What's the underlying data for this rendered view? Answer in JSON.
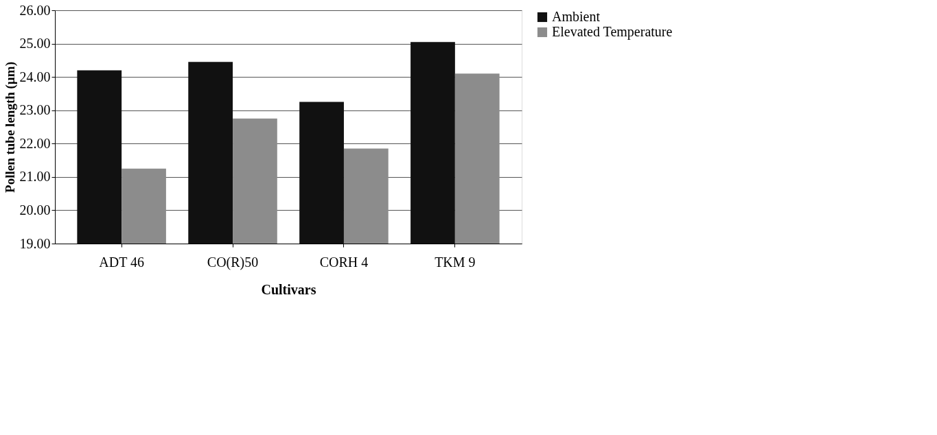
{
  "chart_data": {
    "type": "bar",
    "xlabel": "Cultivars",
    "ylabel": "Pollen tube length (µm)",
    "categories": [
      "ADT 46",
      "CO(R)50",
      "CORH 4",
      "TKM 9"
    ],
    "series": [
      {
        "name": "Ambient",
        "color": "#111111",
        "values": [
          24.2,
          24.45,
          23.25,
          25.05
        ]
      },
      {
        "name": "Elevated Temperature",
        "color": "#8c8c8c",
        "values": [
          21.25,
          22.75,
          21.85,
          24.1
        ]
      }
    ],
    "ylim": [
      19,
      26
    ],
    "yticks": [
      {
        "value": 19,
        "label": "19.00"
      },
      {
        "value": 20,
        "label": "20.00"
      },
      {
        "value": 21,
        "label": "21.00"
      },
      {
        "value": 22,
        "label": "22.00"
      },
      {
        "value": 23,
        "label": "23.00"
      },
      {
        "value": 24,
        "label": "24.00"
      },
      {
        "value": 25,
        "label": "25.00"
      },
      {
        "value": 26,
        "label": "26.00"
      }
    ],
    "grid": "y",
    "legend": "right"
  }
}
